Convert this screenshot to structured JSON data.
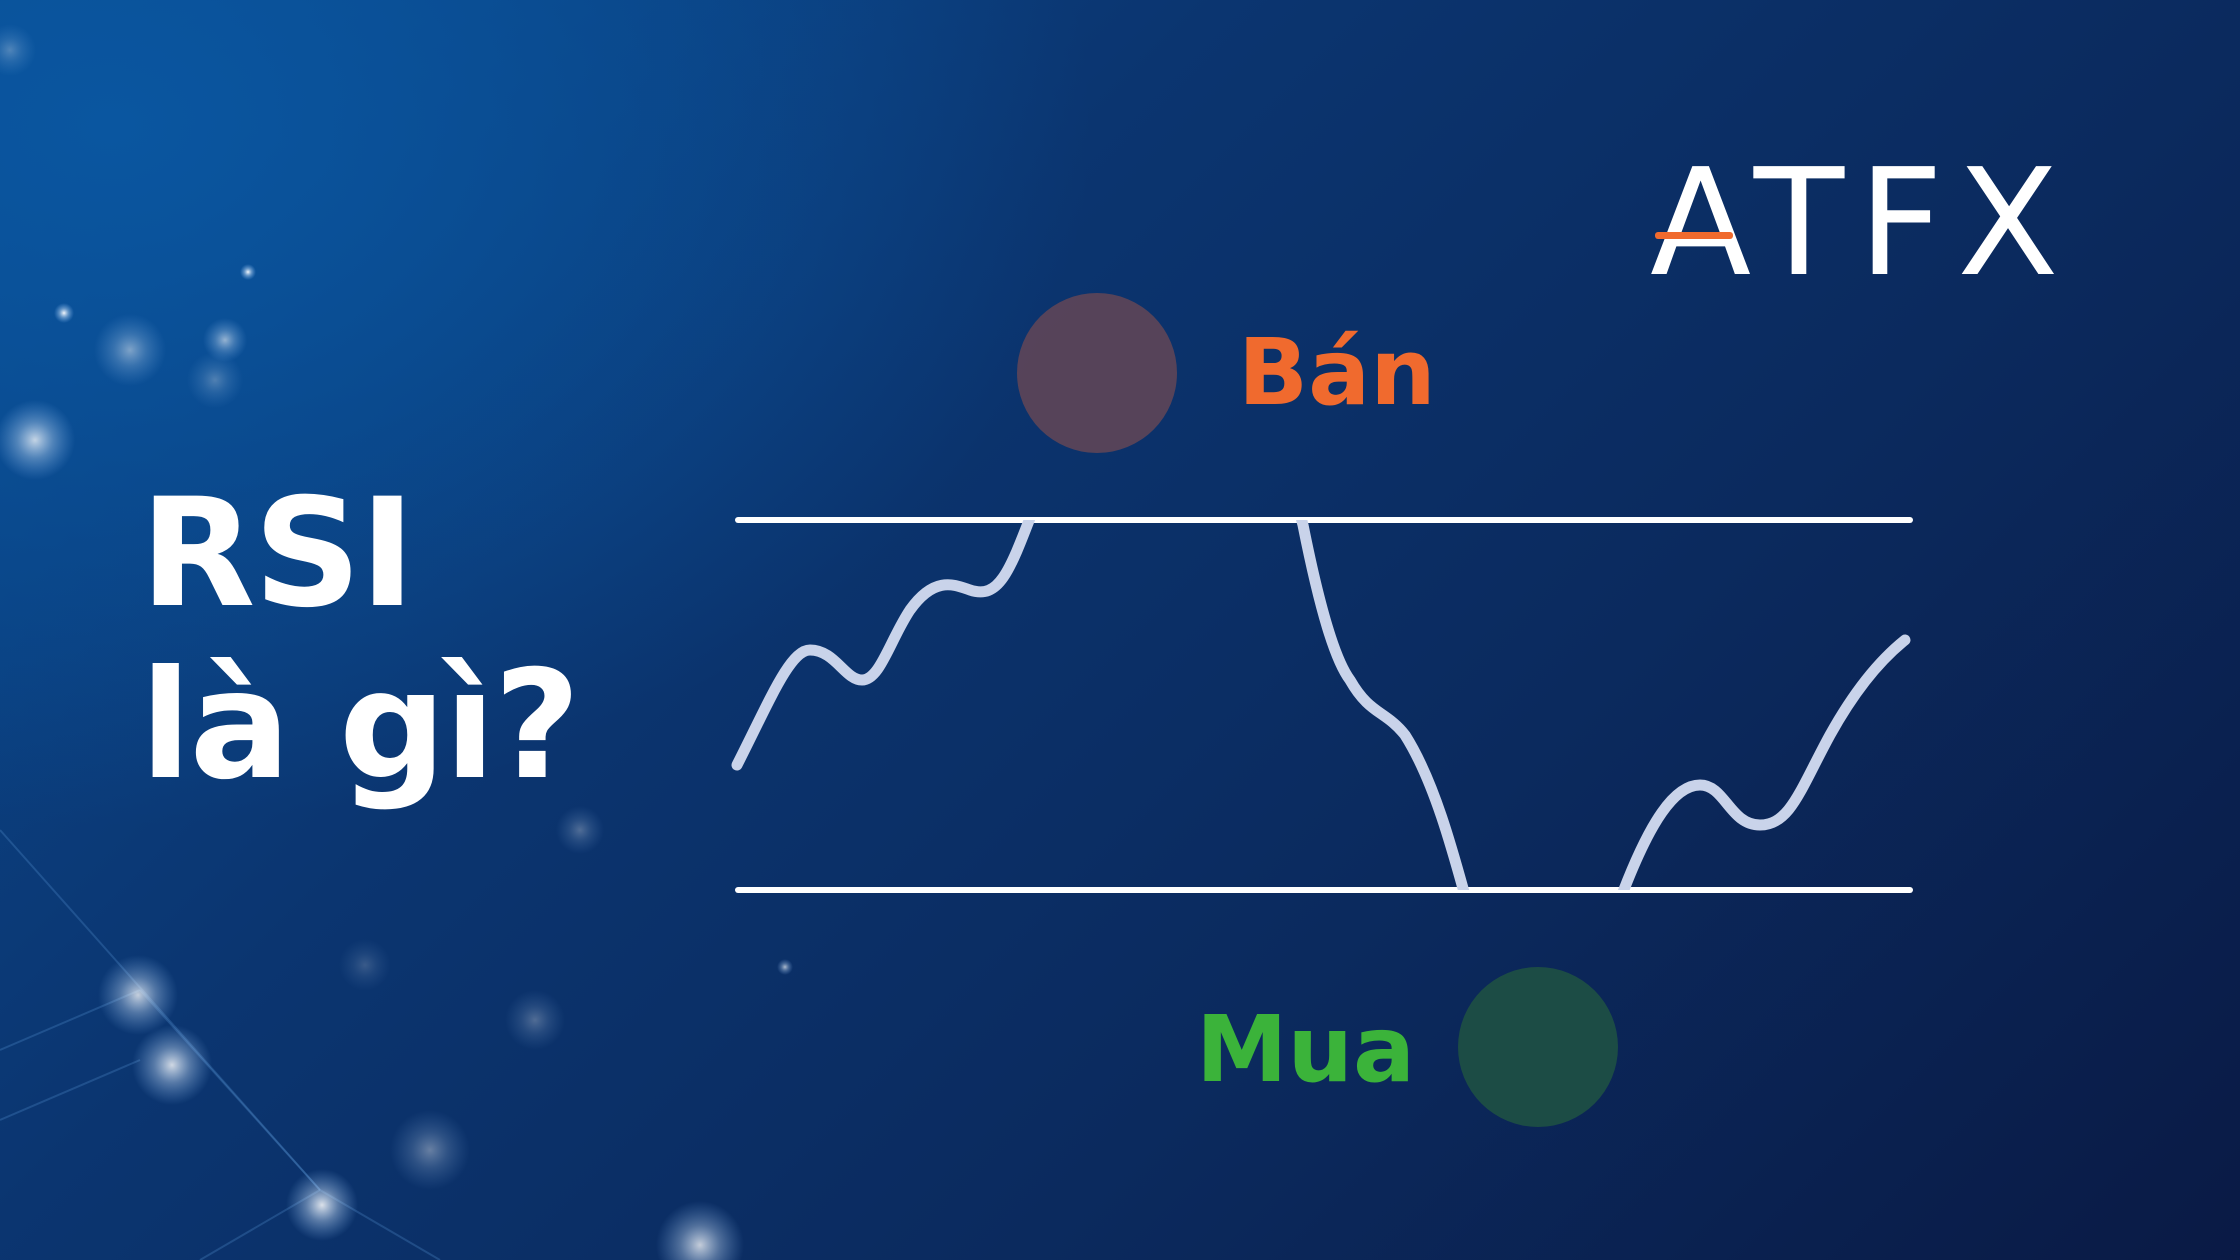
{
  "headline": {
    "line1": "RSI",
    "line2": "là gì?"
  },
  "brand": {
    "logo_text": "ATFX",
    "accent_color": "#f06a2e"
  },
  "chart": {
    "sell_label": "Bán",
    "buy_label": "Mua",
    "line_color": "#c9d3ea",
    "sell_color": "#f06a2e",
    "buy_color": "#3bb33a",
    "threshold_color": "#ffffff"
  }
}
